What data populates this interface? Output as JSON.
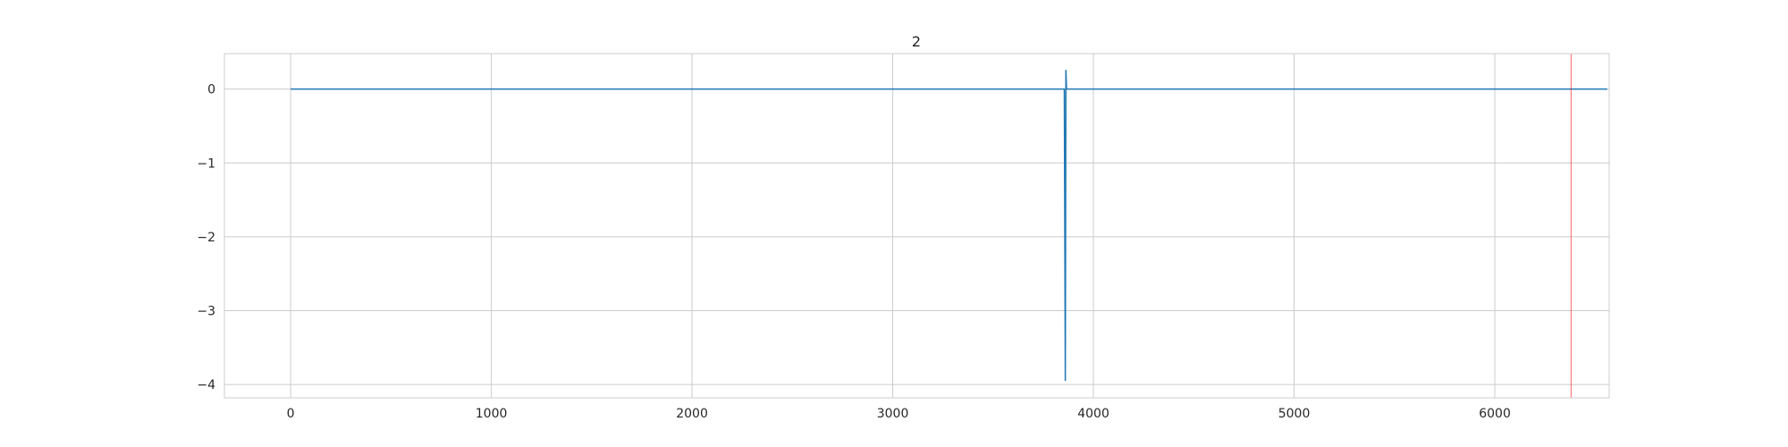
{
  "chart_data": {
    "type": "line",
    "title": "2",
    "xlabel": "",
    "ylabel": "",
    "xlim": [
      -330,
      6570
    ],
    "ylim": [
      -4.18,
      0.48
    ],
    "grid": true,
    "xticks": [
      0,
      1000,
      2000,
      3000,
      4000,
      5000,
      6000
    ],
    "xtick_labels": [
      "0",
      "1000",
      "2000",
      "3000",
      "4000",
      "5000",
      "6000"
    ],
    "yticks": [
      0,
      -1,
      -2,
      -3,
      -4
    ],
    "ytick_labels": [
      "0",
      "−1",
      "−2",
      "−3",
      "−4"
    ],
    "series": [
      {
        "color": "#1f77b4",
        "x": [
          0,
          1000,
          2000,
          3000,
          3850,
          3855,
          3860,
          3863,
          3866,
          3870,
          4000,
          5000,
          6000,
          6560
        ],
        "y": [
          0,
          0,
          0,
          0,
          0,
          0,
          -3.95,
          0.26,
          0,
          0,
          0,
          0,
          0,
          0
        ]
      }
    ],
    "vlines": [
      {
        "x": 6380,
        "color": "#ff0000"
      }
    ]
  }
}
